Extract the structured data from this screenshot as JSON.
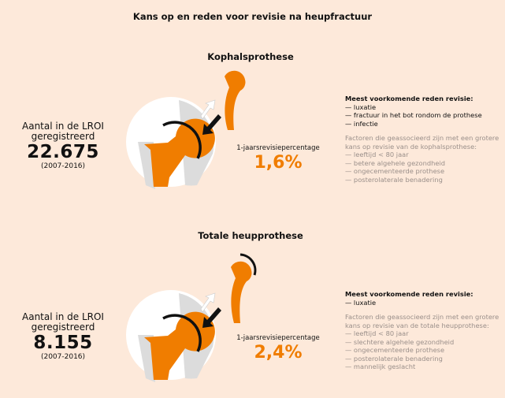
{
  "title": "Kans op en reden voor revisie na heupfractuur",
  "sections": [
    {
      "heading": "Kophalsprothese",
      "count_label": "Aantal in de LROI geregistreerd",
      "count": "22.675",
      "period": "(2007-2016)",
      "rate_label": "1-jaarsrevisiepercentage",
      "rate": "1,6%",
      "reasons_heading": "Meest voorkomende reden revisie:",
      "reasons": [
        "— luxatie",
        "— fractuur in het bot rondom de prothese",
        "— infectie"
      ],
      "factors_intro": "Factoren die geassocieerd zijn met een grotere kans op revisie van de kophalsprothese:",
      "factors": [
        "— leeftijd < 80 jaar",
        "— betere algehele gezondheid",
        "— ongecementeerde prothese",
        "— posterolaterale benadering"
      ]
    },
    {
      "heading": "Totale heupprothese",
      "count_label": "Aantal in de LROI geregistreerd",
      "count": "8.155",
      "period": "(2007-2016)",
      "rate_label": "1-jaarsrevisiepercentage",
      "rate": "2,4%",
      "reasons_heading": "Meest voorkomende reden revisie:",
      "reasons": [
        "— luxatie"
      ],
      "factors_intro": "Factoren die geassocieerd zijn met een grotere kans op revisie van de totale heupprothese:",
      "factors": [
        "— leeftijd < 80 jaar",
        "— slechtere algehele gezondheid",
        "— ongecementeerde prothese",
        "— posterolaterale benadering",
        "— mannelijk geslacht"
      ]
    }
  ],
  "colors": {
    "background": "#fde9da",
    "accent": "#f07d00",
    "muted": "#9a8f8a"
  }
}
